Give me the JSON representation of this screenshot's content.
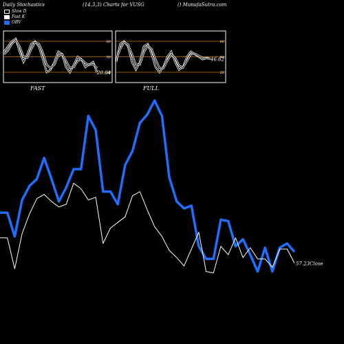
{
  "header": {
    "left": "Daily Stochastics",
    "center": "(14,3,3) Charts for VUSG",
    "right": "() MunafaSutra.com"
  },
  "legend": [
    {
      "label": "Slow  D",
      "color": "#000000"
    },
    {
      "label": "Fast K",
      "color": "#ffffff"
    },
    {
      "label": "OBV",
      "color": "#1f6fff"
    }
  ],
  "colors": {
    "obv": "#1f6fff",
    "close": "#ffffff",
    "orange": "#cc7a00",
    "bg": "#000000"
  },
  "chart_data": [
    {
      "type": "line",
      "panel": "FAST",
      "title": "FAST",
      "ylim": [
        0,
        100
      ],
      "yticks": [
        20,
        50,
        80
      ],
      "value_label": "20.64",
      "series": [
        {
          "values": [
            60,
            70,
            80,
            85,
            60,
            40,
            55,
            75,
            80,
            70,
            45,
            20,
            25,
            40,
            60,
            55,
            30,
            20,
            35,
            50,
            45,
            30,
            35,
            40,
            20
          ]
        },
        {
          "values": [
            55,
            62,
            75,
            82,
            70,
            50,
            48,
            65,
            78,
            75,
            58,
            35,
            28,
            35,
            52,
            55,
            42,
            28,
            30,
            42,
            45,
            38,
            34,
            36,
            28
          ]
        }
      ]
    },
    {
      "type": "line",
      "panel": "FULL",
      "title": "FULL",
      "ylim": [
        0,
        100
      ],
      "yticks": [
        20,
        50,
        80
      ],
      "value_label": "46.62",
      "series": [
        {
          "values": [
            40,
            75,
            80,
            70,
            40,
            25,
            40,
            70,
            75,
            55,
            30,
            20,
            30,
            50,
            60,
            40,
            25,
            30,
            50,
            60,
            55,
            50,
            45,
            48,
            46
          ]
        },
        {
          "values": [
            45,
            65,
            78,
            74,
            55,
            35,
            35,
            58,
            72,
            65,
            45,
            28,
            28,
            42,
            55,
            48,
            33,
            29,
            42,
            55,
            56,
            52,
            48,
            47,
            46
          ]
        }
      ]
    },
    {
      "type": "line",
      "panel": "main",
      "close_label": "57.23Close",
      "series": [
        {
          "values": [
            52,
            52,
            35,
            61,
            71,
            76,
            91,
            76,
            60,
            70,
            83,
            83,
            121,
            111,
            67,
            67,
            58,
            86,
            96,
            116,
            122,
            132,
            121,
            77,
            60,
            55,
            57,
            28,
            19,
            19,
            47,
            46,
            28,
            33,
            22,
            10,
            27,
            10,
            27,
            30,
            24
          ]
        },
        {
          "values": [
            34,
            34,
            12,
            37,
            51,
            62,
            65,
            60,
            56,
            58,
            73,
            69,
            61,
            63,
            30,
            41,
            45,
            49,
            64,
            67,
            54,
            42,
            35,
            25,
            20,
            14,
            26,
            38,
            10,
            9,
            28,
            22,
            34,
            20,
            27,
            19,
            19,
            13,
            26,
            26,
            16
          ]
        }
      ]
    }
  ]
}
